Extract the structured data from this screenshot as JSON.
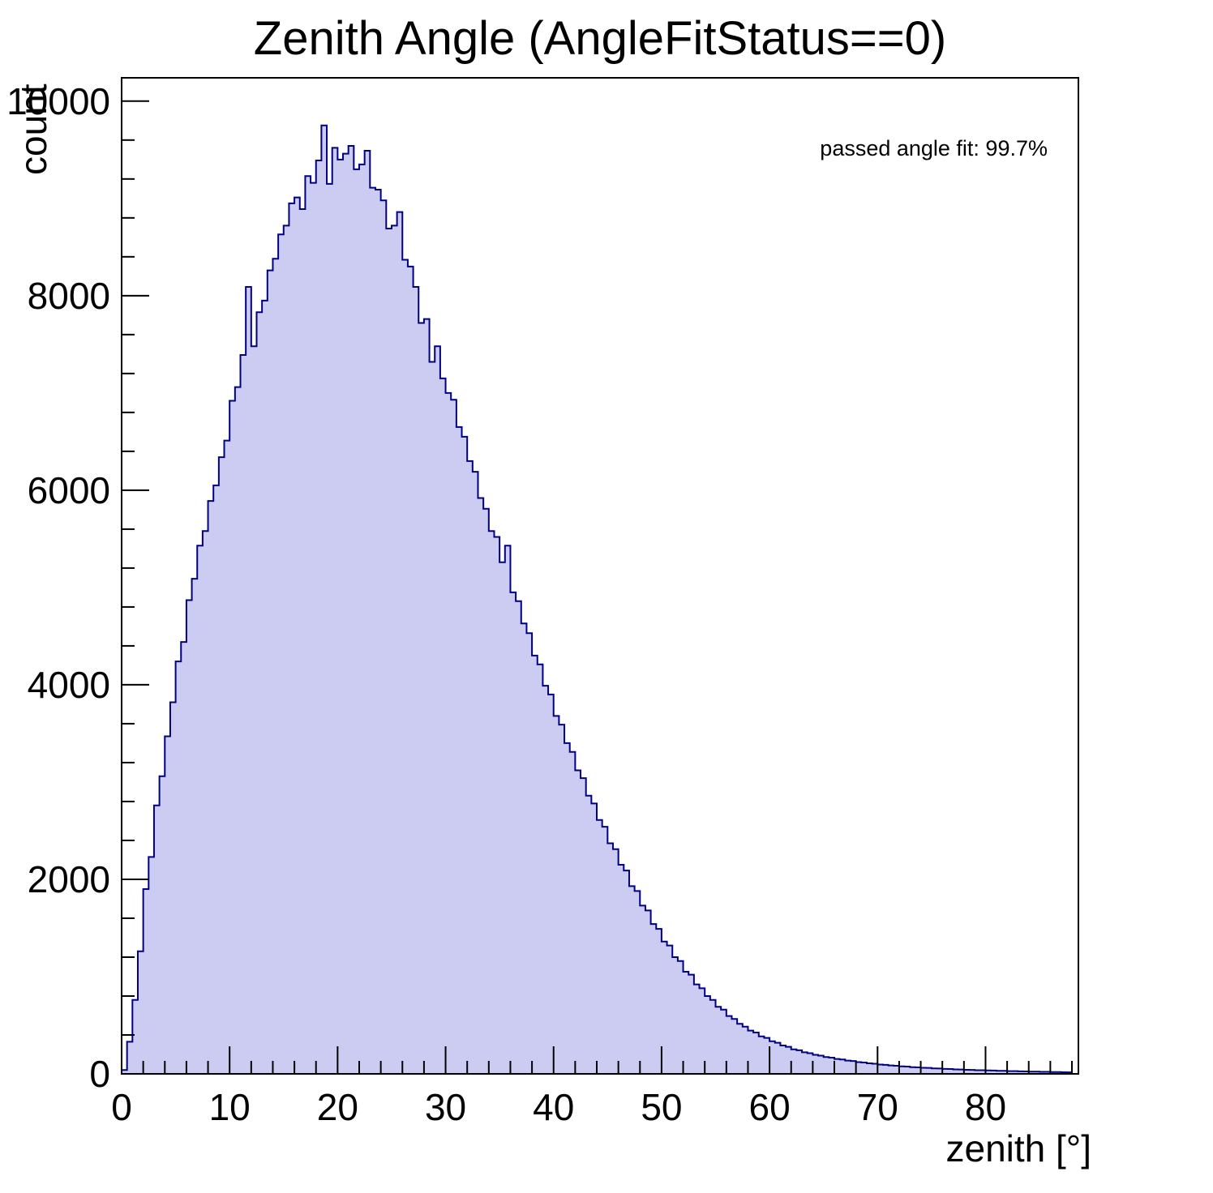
{
  "chart_data": {
    "type": "bar",
    "subtype": "histogram",
    "title": "Zenith Angle (AngleFitStatus==0)",
    "xlabel": "zenith [°]",
    "ylabel": "count",
    "annotation": "passed angle fit: 99.7%",
    "xlim": [
      0,
      88.6
    ],
    "ylim": [
      0,
      10240
    ],
    "x_major_ticks": [
      0,
      10,
      20,
      30,
      40,
      50,
      60,
      70,
      80
    ],
    "x_minor_step": 2,
    "y_major_ticks": [
      0,
      2000,
      4000,
      6000,
      8000,
      10000
    ],
    "y_minor_step": 400,
    "grid": false,
    "legend": "none",
    "bin_start": 0,
    "bin_width": 0.5,
    "fill_color": "#ccccf2",
    "line_color": "#000080",
    "frame_color": "#000000",
    "values": [
      40,
      330,
      760,
      1260,
      1900,
      2230,
      2760,
      3060,
      3470,
      3820,
      4240,
      4440,
      4870,
      5090,
      5430,
      5580,
      5890,
      6050,
      6340,
      6510,
      6920,
      7060,
      7390,
      8090,
      7480,
      7830,
      7950,
      8260,
      8380,
      8630,
      8720,
      8950,
      9010,
      8890,
      9230,
      9160,
      9390,
      9750,
      9150,
      9520,
      9400,
      9460,
      9540,
      9300,
      9350,
      9490,
      9110,
      9090,
      8980,
      8690,
      8720,
      8860,
      8370,
      8300,
      8090,
      7720,
      7760,
      7320,
      7480,
      7150,
      7000,
      6930,
      6650,
      6550,
      6300,
      6190,
      5920,
      5810,
      5580,
      5520,
      5260,
      5430,
      4950,
      4860,
      4630,
      4530,
      4300,
      4210,
      3990,
      3900,
      3680,
      3590,
      3400,
      3310,
      3120,
      3040,
      2860,
      2780,
      2610,
      2540,
      2370,
      2310,
      2150,
      2090,
      1930,
      1880,
      1730,
      1680,
      1540,
      1490,
      1360,
      1320,
      1200,
      1160,
      1050,
      1020,
      920,
      880,
      800,
      760,
      690,
      660,
      595,
      565,
      515,
      485,
      445,
      425,
      385,
      370,
      335,
      320,
      292,
      278,
      252,
      243,
      222,
      212,
      196,
      188,
      173,
      167,
      153,
      148,
      136,
      132,
      121,
      117,
      108,
      104,
      96,
      93,
      86,
      83,
      77,
      75,
      69,
      67,
      62,
      61,
      56,
      55,
      51,
      50,
      46,
      45,
      42,
      41,
      38,
      37,
      35,
      34,
      31,
      31,
      28,
      28,
      26,
      25,
      23,
      23,
      21,
      21,
      19,
      19,
      17,
      16
    ]
  }
}
